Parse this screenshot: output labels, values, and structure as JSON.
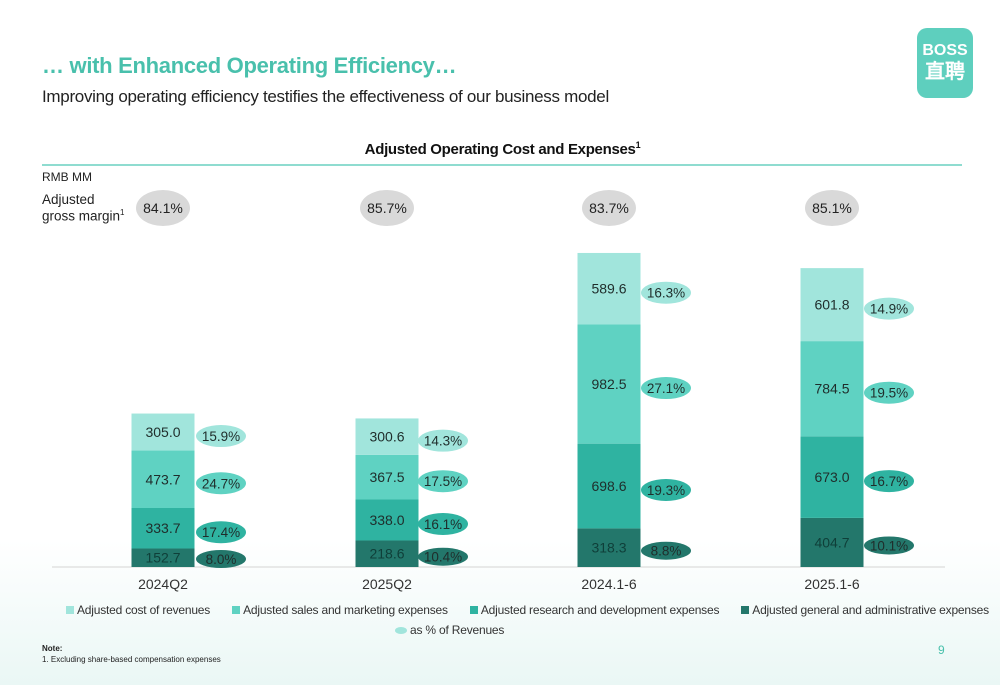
{
  "header": {
    "title": "… with Enhanced Operating Efficiency…",
    "subtitle": "Improving operating efficiency testifies the effectiveness of our business model",
    "logo_line1": "BOSS",
    "logo_line2": "直聘"
  },
  "chart_meta": {
    "unit_label": "RMB MM",
    "gm_label_line1": "Adjusted",
    "gm_label_line2": "gross margin",
    "gm_label_sup": "1",
    "title_sup": "1",
    "pct_legend_label": "as % of Revenues"
  },
  "chart_data": {
    "type": "bar",
    "stacked": true,
    "title": "Adjusted Operating Cost and Expenses",
    "unit": "RMB MM",
    "categories": [
      "2024Q2",
      "2025Q2",
      "2024.1-6",
      "2025.1-6"
    ],
    "gross_margin": [
      "84.1%",
      "85.7%",
      "83.7%",
      "85.1%"
    ],
    "series": [
      {
        "name": "Adjusted general and administrative expenses",
        "color": "#23776b",
        "values": [
          152.7,
          218.6,
          318.3,
          404.7
        ],
        "pct": [
          "8.0%",
          "10.4%",
          "8.8%",
          "10.1%"
        ]
      },
      {
        "name": "Adjusted research and development expenses",
        "color": "#2fb3a1",
        "values": [
          333.7,
          338.0,
          698.6,
          673.0
        ],
        "pct": [
          "17.4%",
          "16.1%",
          "19.3%",
          "16.7%"
        ]
      },
      {
        "name": "Adjusted sales and marketing expenses",
        "color": "#5fd2c2",
        "values": [
          473.7,
          367.5,
          982.5,
          784.5
        ],
        "pct": [
          "24.7%",
          "17.5%",
          "27.1%",
          "19.5%"
        ]
      },
      {
        "name": "Adjusted cost of revenues",
        "color": "#a1e5dc",
        "values": [
          305.0,
          300.6,
          589.6,
          601.8
        ],
        "pct": [
          "15.9%",
          "14.3%",
          "16.3%",
          "14.9%"
        ]
      }
    ],
    "legend_order": [
      "Adjusted cost of revenues",
      "Adjusted sales and marketing expenses",
      "Adjusted research and development expenses",
      "Adjusted general and administrative expenses"
    ],
    "legend_position": "bottom"
  },
  "footer": {
    "note_title": "Note:",
    "note_text": "1. Excluding share-based compensation expenses",
    "page_number": "9"
  },
  "colors": {
    "accent": "#49c0ac",
    "gm_bubble": "#d9d9d9",
    "pct_legend": "#a1e5dc"
  }
}
